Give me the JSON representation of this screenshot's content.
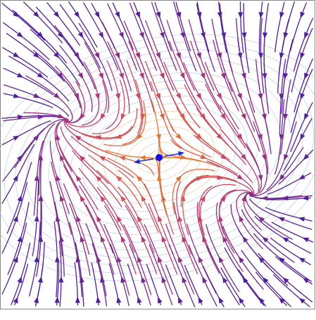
{
  "chart_data": {
    "type": "streamplot"
  }
}
